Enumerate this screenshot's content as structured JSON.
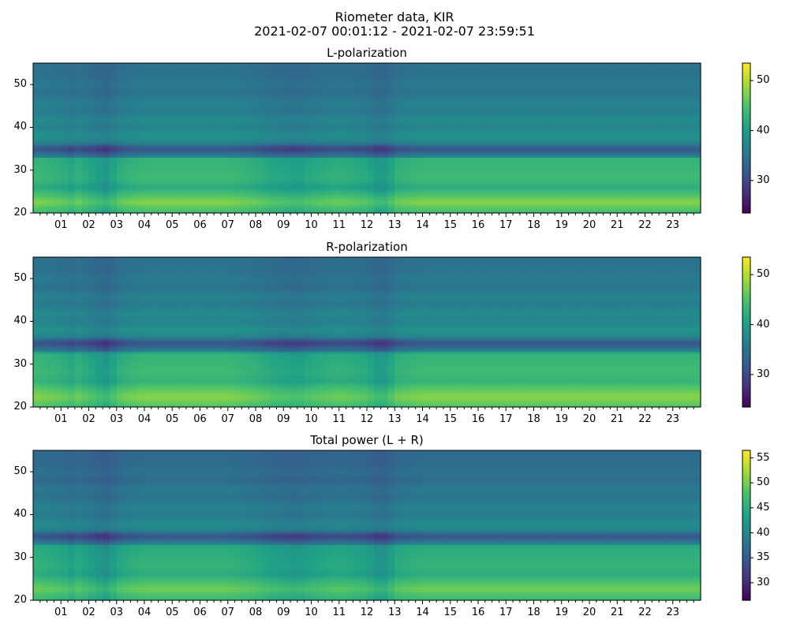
{
  "figure": {
    "title_line1": "Riometer data, KIR",
    "title_line2": "2021-02-07 00:01:12 - 2021-02-07 23:59:51"
  },
  "colormap": [
    "#440154",
    "#46327e",
    "#365c8d",
    "#277f8e",
    "#1fa187",
    "#4ac16d",
    "#a0da39",
    "#fde725"
  ],
  "chart_data": [
    {
      "type": "heatmap",
      "title": "L-polarization",
      "xlabel": "",
      "ylabel": "",
      "x_unit": "hour",
      "xlim": [
        0,
        24
      ],
      "ylim": [
        20,
        55
      ],
      "yticks": [
        20,
        30,
        40,
        50
      ],
      "xtick_labels": [
        "01",
        "02",
        "03",
        "04",
        "05",
        "06",
        "07",
        "08",
        "09",
        "10",
        "11",
        "12",
        "13",
        "14",
        "15",
        "16",
        "17",
        "18",
        "19",
        "20",
        "21",
        "22",
        "23"
      ],
      "colorbar": {
        "range": [
          23.5,
          53.5
        ],
        "ticks": [
          30,
          40,
          50
        ]
      },
      "base_by_y": [
        [
          20,
          44
        ],
        [
          21.5,
          46
        ],
        [
          22.5,
          48
        ],
        [
          25,
          44
        ],
        [
          26,
          42
        ],
        [
          28,
          44
        ],
        [
          32.4,
          43
        ],
        [
          32.6,
          46
        ],
        [
          33,
          38
        ],
        [
          35,
          31
        ],
        [
          36.5,
          37
        ],
        [
          38,
          39
        ],
        [
          40,
          37
        ],
        [
          42,
          38
        ],
        [
          44,
          36
        ],
        [
          46,
          37
        ],
        [
          48,
          35
        ],
        [
          50,
          36
        ],
        [
          52,
          35
        ],
        [
          55,
          35
        ]
      ],
      "time_modulation": [
        [
          0,
          0
        ],
        [
          1,
          -1
        ],
        [
          1.4,
          -2
        ],
        [
          1.6,
          -1
        ],
        [
          2.3,
          -3
        ],
        [
          2.6,
          -4
        ],
        [
          3.2,
          -1
        ],
        [
          4,
          0
        ],
        [
          7,
          0
        ],
        [
          8,
          -1
        ],
        [
          8.5,
          -2
        ],
        [
          9.5,
          -3
        ],
        [
          10,
          -2
        ],
        [
          11,
          -1
        ],
        [
          12,
          -2
        ],
        [
          12.5,
          -4
        ],
        [
          12.8,
          -3
        ],
        [
          13,
          -1
        ],
        [
          14,
          0
        ],
        [
          24,
          0
        ]
      ]
    },
    {
      "type": "heatmap",
      "title": "R-polarization",
      "xlabel": "",
      "ylabel": "",
      "x_unit": "hour",
      "xlim": [
        0,
        24
      ],
      "ylim": [
        20,
        55
      ],
      "yticks": [
        20,
        30,
        40,
        50
      ],
      "xtick_labels": [
        "01",
        "02",
        "03",
        "04",
        "05",
        "06",
        "07",
        "08",
        "09",
        "10",
        "11",
        "12",
        "13",
        "14",
        "15",
        "16",
        "17",
        "18",
        "19",
        "20",
        "21",
        "22",
        "23"
      ],
      "colorbar": {
        "range": [
          23.5,
          53.5
        ],
        "ticks": [
          30,
          40,
          50
        ]
      },
      "base_by_y": [
        [
          20,
          45
        ],
        [
          21.5,
          47
        ],
        [
          22.5,
          48
        ],
        [
          25,
          45
        ],
        [
          26,
          43
        ],
        [
          28,
          44
        ],
        [
          32.4,
          43
        ],
        [
          32.6,
          44
        ],
        [
          33,
          37
        ],
        [
          35,
          31
        ],
        [
          36.5,
          37
        ],
        [
          38,
          39
        ],
        [
          40,
          37
        ],
        [
          42,
          38
        ],
        [
          44,
          36
        ],
        [
          46,
          37
        ],
        [
          48,
          35
        ],
        [
          50,
          36
        ],
        [
          52,
          35
        ],
        [
          55,
          35
        ]
      ],
      "time_modulation": [
        [
          0,
          0
        ],
        [
          1,
          -1
        ],
        [
          1.4,
          -2
        ],
        [
          1.6,
          -1
        ],
        [
          2.3,
          -3
        ],
        [
          2.6,
          -4
        ],
        [
          3.2,
          -1
        ],
        [
          4,
          0
        ],
        [
          7,
          0
        ],
        [
          8,
          -1
        ],
        [
          8.5,
          -2
        ],
        [
          9.5,
          -3
        ],
        [
          10,
          -2
        ],
        [
          11,
          -1
        ],
        [
          12,
          -2
        ],
        [
          12.5,
          -4
        ],
        [
          12.8,
          -3
        ],
        [
          13,
          -1
        ],
        [
          14,
          0
        ],
        [
          24,
          0
        ]
      ]
    },
    {
      "type": "heatmap",
      "title": "Total power (L + R)",
      "xlabel": "",
      "ylabel": "",
      "x_unit": "hour",
      "xlim": [
        0,
        24
      ],
      "ylim": [
        20,
        55
      ],
      "yticks": [
        20,
        30,
        40,
        50
      ],
      "xtick_labels": [
        "01",
        "02",
        "03",
        "04",
        "05",
        "06",
        "07",
        "08",
        "09",
        "10",
        "11",
        "12",
        "13",
        "14",
        "15",
        "16",
        "17",
        "18",
        "19",
        "20",
        "21",
        "22",
        "23"
      ],
      "colorbar": {
        "range": [
          26.5,
          56.5
        ],
        "ticks": [
          30,
          35,
          40,
          45,
          50,
          55
        ]
      },
      "base_by_y": [
        [
          20,
          47
        ],
        [
          21.5,
          48
        ],
        [
          22.5,
          50
        ],
        [
          25,
          47
        ],
        [
          26,
          45
        ],
        [
          28,
          46
        ],
        [
          32.4,
          45
        ],
        [
          32.6,
          47
        ],
        [
          33,
          41
        ],
        [
          35,
          34
        ],
        [
          36.5,
          40
        ],
        [
          38,
          41
        ],
        [
          40,
          39
        ],
        [
          42,
          40
        ],
        [
          44,
          38
        ],
        [
          46,
          39
        ],
        [
          48,
          37
        ],
        [
          50,
          38
        ],
        [
          52,
          37
        ],
        [
          55,
          37
        ]
      ],
      "time_modulation": [
        [
          0,
          0
        ],
        [
          1,
          -1
        ],
        [
          1.4,
          -2
        ],
        [
          1.6,
          -1
        ],
        [
          2.3,
          -3
        ],
        [
          2.6,
          -4
        ],
        [
          3.2,
          -1
        ],
        [
          4,
          0
        ],
        [
          7,
          0
        ],
        [
          8,
          -1
        ],
        [
          8.5,
          -2
        ],
        [
          9.5,
          -3
        ],
        [
          10,
          -2
        ],
        [
          11,
          -1
        ],
        [
          12,
          -2
        ],
        [
          12.5,
          -4
        ],
        [
          12.8,
          -3
        ],
        [
          13,
          -1
        ],
        [
          14,
          0
        ],
        [
          24,
          0
        ]
      ]
    }
  ]
}
